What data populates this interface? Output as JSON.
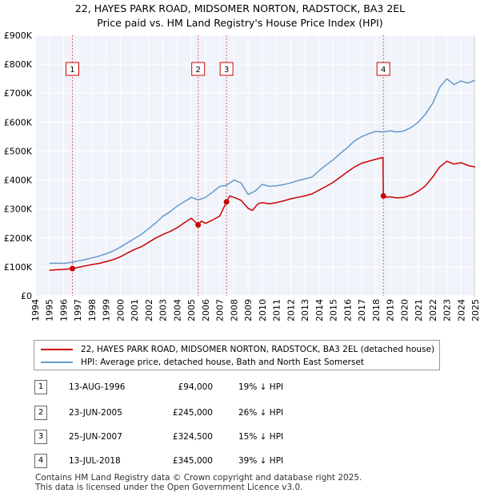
{
  "chart_data": {
    "type": "line",
    "title": "22, HAYES PARK ROAD, MIDSOMER NORTON, RADSTOCK, BA3 2EL",
    "subtitle": "Price paid vs. HM Land Registry's House Price Index (HPI)",
    "xlim": [
      1994,
      2025
    ],
    "ylim": [
      0,
      900000
    ],
    "x_ticks": [
      "1994",
      "1995",
      "1996",
      "1997",
      "1998",
      "1999",
      "2000",
      "2001",
      "2002",
      "2003",
      "2004",
      "2005",
      "2006",
      "2007",
      "2008",
      "2009",
      "2010",
      "2011",
      "2012",
      "2013",
      "2014",
      "2015",
      "2016",
      "2017",
      "2018",
      "2019",
      "2020",
      "2021",
      "2022",
      "2023",
      "2024",
      "2025"
    ],
    "y_ticks": [
      {
        "value": 0,
        "label": "£0"
      },
      {
        "value": 100000,
        "label": "£100K"
      },
      {
        "value": 200000,
        "label": "£200K"
      },
      {
        "value": 300000,
        "label": "£300K"
      },
      {
        "value": 400000,
        "label": "£400K"
      },
      {
        "value": 500000,
        "label": "£500K"
      },
      {
        "value": 600000,
        "label": "£600K"
      },
      {
        "value": 700000,
        "label": "£700K"
      },
      {
        "value": 800000,
        "label": "£800K"
      },
      {
        "value": 900000,
        "label": "£900K"
      }
    ],
    "grid": true,
    "series": [
      {
        "name": "22, HAYES PARK ROAD, MIDSOMER NORTON, RADSTOCK, BA3 2EL (detached house)",
        "color": "#cc0000",
        "x": [
          1995.0,
          1995.5,
          1996.0,
          1996.62,
          1997.0,
          1997.5,
          1998.0,
          1998.5,
          1999.0,
          1999.5,
          2000.0,
          2000.5,
          2001.0,
          2001.5,
          2002.0,
          2002.5,
          2003.0,
          2003.5,
          2004.0,
          2004.5,
          2005.0,
          2005.48,
          2005.7,
          2006.0,
          2006.5,
          2007.0,
          2007.48,
          2007.7,
          2008.0,
          2008.5,
          2009.0,
          2009.3,
          2009.7,
          2010.0,
          2010.5,
          2011.0,
          2011.5,
          2012.0,
          2012.5,
          2013.0,
          2013.5,
          2014.0,
          2014.5,
          2015.0,
          2015.5,
          2016.0,
          2016.5,
          2017.0,
          2017.5,
          2018.0,
          2018.5,
          2018.53,
          2018.6,
          2019.0,
          2019.5,
          2020.0,
          2020.5,
          2021.0,
          2021.5,
          2022.0,
          2022.5,
          2023.0,
          2023.5,
          2024.0,
          2024.5,
          2025.0
        ],
        "values": [
          88000,
          90000,
          91000,
          94000,
          98000,
          103000,
          108000,
          112000,
          118000,
          125000,
          135000,
          148000,
          160000,
          170000,
          185000,
          200000,
          212000,
          222000,
          235000,
          252000,
          268000,
          245000,
          258000,
          250000,
          262000,
          275000,
          324500,
          345000,
          340000,
          330000,
          302000,
          295000,
          318000,
          322000,
          318000,
          322000,
          328000,
          335000,
          340000,
          345000,
          352000,
          365000,
          378000,
          392000,
          410000,
          428000,
          445000,
          458000,
          465000,
          472000,
          478000,
          345000,
          340000,
          342000,
          338000,
          340000,
          348000,
          362000,
          380000,
          410000,
          445000,
          465000,
          455000,
          460000,
          450000,
          445000
        ]
      },
      {
        "name": "HPI: Average price, detached house, Bath and North East Somerset",
        "color": "#6699cc",
        "x": [
          1995.0,
          1995.5,
          1996.0,
          1996.62,
          1997.0,
          1997.5,
          1998.0,
          1998.5,
          1999.0,
          1999.5,
          2000.0,
          2000.5,
          2001.0,
          2001.5,
          2002.0,
          2002.5,
          2003.0,
          2003.5,
          2004.0,
          2004.5,
          2005.0,
          2005.48,
          2006.0,
          2006.5,
          2007.0,
          2007.48,
          2008.0,
          2008.5,
          2009.0,
          2009.5,
          2010.0,
          2010.5,
          2011.0,
          2011.5,
          2012.0,
          2012.5,
          2013.0,
          2013.5,
          2014.0,
          2014.5,
          2015.0,
          2015.5,
          2016.0,
          2016.5,
          2017.0,
          2017.5,
          2018.0,
          2018.53,
          2019.0,
          2019.5,
          2020.0,
          2020.5,
          2021.0,
          2021.5,
          2022.0,
          2022.5,
          2023.0,
          2023.5,
          2024.0,
          2024.5,
          2025.0
        ],
        "values": [
          112000,
          113000,
          112000,
          116000,
          120000,
          125000,
          131000,
          137000,
          145000,
          155000,
          168000,
          183000,
          198000,
          213000,
          232000,
          252000,
          275000,
          290000,
          310000,
          325000,
          340000,
          331000,
          340000,
          358000,
          378000,
          382000,
          400000,
          390000,
          350000,
          362000,
          385000,
          378000,
          380000,
          384000,
          390000,
          398000,
          404000,
          410000,
          432000,
          452000,
          470000,
          492000,
          512000,
          535000,
          550000,
          560000,
          568000,
          566000,
          570000,
          566000,
          570000,
          582000,
          600000,
          628000,
          665000,
          720000,
          750000,
          730000,
          742000,
          735000,
          745000
        ]
      }
    ],
    "sales": [
      {
        "id": "1",
        "x": 1996.62,
        "value": 94000
      },
      {
        "id": "2",
        "x": 2005.48,
        "value": 245000
      },
      {
        "id": "3",
        "x": 2007.48,
        "value": 324500
      },
      {
        "id": "4",
        "x": 2018.53,
        "value": 345000
      }
    ]
  },
  "legend": {
    "property_label": "22, HAYES PARK ROAD, MIDSOMER NORTON, RADSTOCK, BA3 2EL (detached house)",
    "hpi_label": "HPI: Average price, detached house, Bath and North East Somerset"
  },
  "sales_table": [
    {
      "num": "1",
      "date": "13-AUG-1996",
      "price": "£94,000",
      "hpi": "19% ↓ HPI"
    },
    {
      "num": "2",
      "date": "23-JUN-2005",
      "price": "£245,000",
      "hpi": "26% ↓ HPI"
    },
    {
      "num": "3",
      "date": "25-JUN-2007",
      "price": "£324,500",
      "hpi": "15% ↓ HPI"
    },
    {
      "num": "4",
      "date": "13-JUL-2018",
      "price": "£345,000",
      "hpi": "39% ↓ HPI"
    }
  ],
  "footer": {
    "line1": "Contains HM Land Registry data © Crown copyright and database right 2025.",
    "line2": "This data is licensed under the Open Government Licence v3.0."
  }
}
